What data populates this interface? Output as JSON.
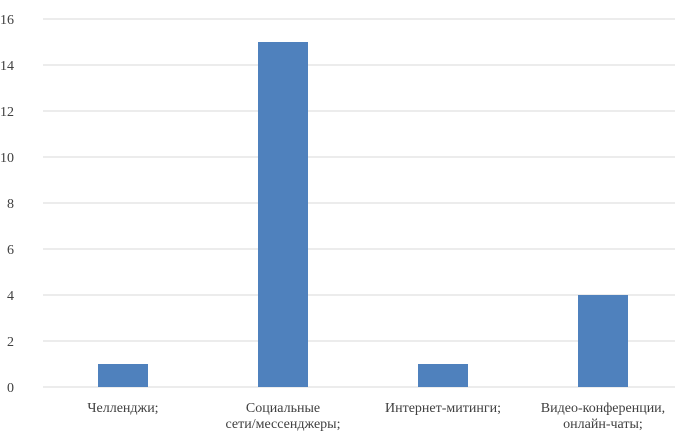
{
  "chart_data": {
    "type": "bar",
    "categories": [
      [
        "Челленджи;"
      ],
      [
        "Социальные",
        "сети/мессенджеры;"
      ],
      [
        "Интернет-митинги;"
      ],
      [
        "Видео-конференции,",
        "онлайн-чаты;"
      ]
    ],
    "values": [
      1,
      15,
      1,
      4
    ],
    "ylim": [
      0,
      16
    ],
    "yticks": [
      0,
      2,
      4,
      6,
      8,
      10,
      12,
      14,
      16
    ],
    "grid": true,
    "bar_color": "#4F81BD",
    "grid_color": "#D9D9D9",
    "text_color": "#404040"
  }
}
